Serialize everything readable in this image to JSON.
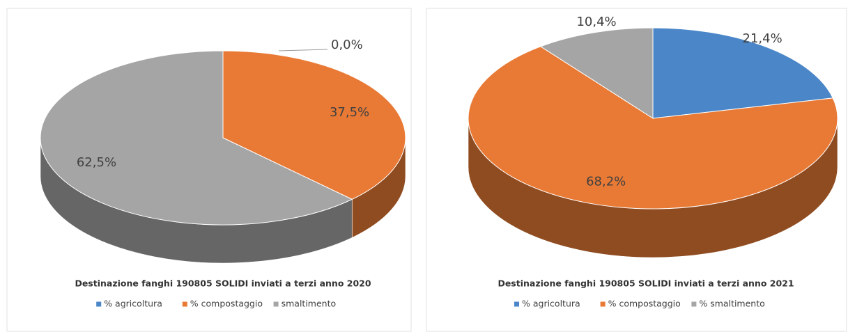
{
  "chart_data": [
    {
      "type": "pie",
      "title": "Destinazione fanghi 190805 SOLIDI inviati a terzi anno 2020",
      "categories": [
        "% agricoltura",
        "% compostaggio",
        "smaltimento"
      ],
      "values": [
        0.0,
        37.5,
        62.5
      ],
      "value_labels": [
        "0,0%",
        "37,5%",
        "62,5%"
      ],
      "colors": [
        "#4a86c8",
        "#e97a35",
        "#a5a5a5"
      ]
    },
    {
      "type": "pie",
      "title": "Destinazione fanghi 190805 SOLIDI inviati a terzi anno 2021",
      "categories": [
        "% agricoltura",
        "% compostaggio",
        "% smaltimento"
      ],
      "values": [
        21.4,
        68.2,
        10.4
      ],
      "value_labels": [
        "21,4%",
        "68,2%",
        "10,4%"
      ],
      "colors": [
        "#4a86c8",
        "#e97a35",
        "#a5a5a5"
      ]
    }
  ]
}
